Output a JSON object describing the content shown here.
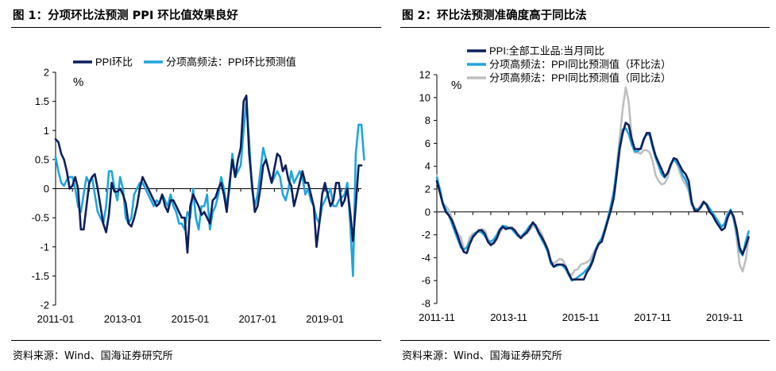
{
  "chart_data": [
    {
      "type": "line",
      "title": "图 1：分项环比法预测 PPI 环比值效果良好",
      "ylabel": "%",
      "ylim": [
        -2,
        2
      ],
      "yticks": [
        -2,
        -1.5,
        -1,
        -0.5,
        0,
        0.5,
        1,
        1.5,
        2
      ],
      "xlim": [
        "2011-01",
        "2020-02"
      ],
      "xticks": [
        "2011-01",
        "2013-01",
        "2015-01",
        "2017-01",
        "2019-01"
      ],
      "legend_position": "top",
      "grid": false,
      "source": "资料来源：Wind、国海证券研究所",
      "series": [
        {
          "name": "PPI环比",
          "color": "#0c1f5c",
          "start": "2011-01",
          "values": [
            0.85,
            0.8,
            0.6,
            0.5,
            0.3,
            0.0,
            0.05,
            0.2,
            0.0,
            -0.7,
            -0.7,
            -0.3,
            0.1,
            0.2,
            0.25,
            0.0,
            -0.3,
            -0.6,
            -0.75,
            -0.45,
            0.1,
            -0.05,
            -0.05,
            0.0,
            -0.1,
            -0.25,
            -0.6,
            -0.65,
            -0.5,
            -0.3,
            0.0,
            0.2,
            0.1,
            0.0,
            -0.1,
            -0.2,
            -0.3,
            -0.25,
            -0.1,
            -0.3,
            -0.4,
            -0.2,
            -0.2,
            -0.3,
            -0.4,
            -0.5,
            -0.5,
            -1.1,
            -0.3,
            -0.1,
            -0.2,
            -0.3,
            -0.45,
            -0.4,
            -0.5,
            -0.6,
            -0.2,
            -0.15,
            0.0,
            0.1,
            -0.1,
            -0.4,
            0.1,
            0.5,
            0.2,
            0.5,
            0.7,
            1.5,
            1.6,
            0.6,
            0.1,
            -0.4,
            -0.3,
            0.0,
            0.4,
            0.5,
            0.3,
            0.1,
            0.35,
            0.6,
            0.55,
            0.3,
            0.4,
            0.15,
            0.05,
            -0.3,
            -0.1,
            0.1,
            0.3,
            0.1,
            0.1,
            -0.1,
            -0.3,
            -1.0,
            -0.6,
            -0.1,
            0.1,
            -0.1,
            -0.3,
            -0.2,
            0.1,
            0.1,
            -0.3,
            -0.2,
            0.0,
            -0.4,
            -0.9,
            -0.3,
            0.4,
            0.4
          ]
        },
        {
          "name": "分项高频法：PPI环比预测值",
          "color": "#1fa5dc",
          "start": "2011-01",
          "values": [
            0.55,
            0.3,
            0.1,
            0.05,
            0.15,
            0.2,
            0.2,
            0.0,
            -0.3,
            -0.4,
            -0.1,
            0.2,
            0.1,
            0.2,
            -0.1,
            -0.4,
            -0.5,
            -0.6,
            -0.3,
            0.3,
            0.3,
            0.0,
            -0.2,
            0.2,
            0.0,
            -0.5,
            -0.6,
            -0.5,
            -0.1,
            0.0,
            0.1,
            0.1,
            0.0,
            -0.1,
            -0.2,
            -0.3,
            -0.2,
            -0.25,
            -0.1,
            -0.2,
            -0.3,
            -0.1,
            -0.3,
            -0.4,
            -0.6,
            -0.6,
            -0.7,
            -0.4,
            -0.5,
            0.0,
            -0.5,
            -0.7,
            -0.3,
            -0.3,
            -0.1,
            -0.7,
            -0.4,
            -0.3,
            -0.1,
            0.2,
            0.0,
            -0.3,
            0.0,
            0.6,
            0.2,
            0.3,
            0.4,
            1.0,
            1.5,
            0.8,
            0.0,
            -0.3,
            -0.1,
            0.3,
            0.7,
            0.5,
            0.3,
            0.1,
            0.2,
            0.3,
            0.2,
            -0.1,
            -0.2,
            0.0,
            0.3,
            0.1,
            0.2,
            0.3,
            0.2,
            -0.1,
            0.0,
            -0.2,
            -0.3,
            -0.5,
            -0.6,
            -0.3,
            -0.2,
            -0.1,
            0.0,
            -0.3,
            -0.3,
            -0.2,
            -0.15,
            -0.1,
            0.1,
            -0.6,
            -1.5,
            0.6,
            1.1,
            1.1,
            0.5
          ]
        }
      ]
    },
    {
      "type": "line",
      "title": "图 2：环比法预测准确度高于同比法",
      "ylabel": "%",
      "ylim": [
        -8,
        12
      ],
      "yticks": [
        -8,
        -6,
        -4,
        -2,
        0,
        2,
        4,
        6,
        8,
        10,
        12
      ],
      "xlim": [
        "2011-11",
        "2020-05"
      ],
      "xticks": [
        "2011-11",
        "2013-11",
        "2015-11",
        "2017-11",
        "2019-11"
      ],
      "legend_position": "top",
      "grid": false,
      "source": "资料来源：Wind、国海证券研究所",
      "series": [
        {
          "name": "PPI:全部工业品:当月同比",
          "color": "#0c1f5c",
          "start": "2011-11",
          "values": [
            2.7,
            1.7,
            0.7,
            0.0,
            -0.3,
            -0.7,
            -1.4,
            -2.1,
            -2.9,
            -3.5,
            -3.6,
            -2.8,
            -2.2,
            -1.9,
            -1.6,
            -1.6,
            -1.9,
            -2.6,
            -2.9,
            -2.7,
            -2.3,
            -1.6,
            -1.3,
            -1.5,
            -1.4,
            -1.4,
            -1.6,
            -2.0,
            -2.3,
            -2.0,
            -1.8,
            -1.4,
            -0.9,
            -1.2,
            -1.8,
            -2.2,
            -2.7,
            -3.3,
            -4.3,
            -4.8,
            -4.6,
            -4.6,
            -4.6,
            -4.8,
            -5.4,
            -5.9,
            -5.9,
            -5.9,
            -5.9,
            -5.9,
            -5.3,
            -4.9,
            -4.3,
            -3.4,
            -2.8,
            -2.6,
            -1.7,
            -0.8,
            0.1,
            1.2,
            3.3,
            5.5,
            6.9,
            7.8,
            7.6,
            6.4,
            5.5,
            5.5,
            5.5,
            6.3,
            6.9,
            6.9,
            5.8,
            4.9,
            4.3,
            3.7,
            3.1,
            3.4,
            4.1,
            4.7,
            4.6,
            4.1,
            3.6,
            3.3,
            2.7,
            0.9,
            0.1,
            0.1,
            0.4,
            0.9,
            0.6,
            0.0,
            -0.3,
            -0.8,
            -1.2,
            -1.6,
            -1.4,
            -0.5,
            0.1,
            -0.4,
            -1.5,
            -3.1,
            -3.7,
            -3.0,
            -2.2
          ]
        },
        {
          "name": "分项高频法：PPI同比预测值（环比法）",
          "color": "#1fa5dc",
          "start": "2011-11",
          "values": [
            3.0,
            2.0,
            0.8,
            0.2,
            -0.3,
            -1.0,
            -1.7,
            -2.4,
            -3.1,
            -3.3,
            -3.1,
            -2.6,
            -2.1,
            -1.8,
            -1.7,
            -1.8,
            -2.1,
            -2.5,
            -2.6,
            -2.4,
            -2.0,
            -1.5,
            -1.2,
            -1.3,
            -1.4,
            -1.5,
            -1.8,
            -2.1,
            -2.2,
            -1.9,
            -1.6,
            -1.2,
            -1.0,
            -1.3,
            -1.9,
            -2.4,
            -2.9,
            -3.5,
            -4.5,
            -4.8,
            -4.7,
            -4.6,
            -4.7,
            -5.0,
            -5.5,
            -6.0,
            -5.9,
            -5.7,
            -5.5,
            -5.3,
            -5.0,
            -4.7,
            -4.1,
            -3.3,
            -2.7,
            -2.3,
            -1.5,
            -0.6,
            0.5,
            1.8,
            3.8,
            5.8,
            7.2,
            7.3,
            6.8,
            5.9,
            5.3,
            5.3,
            5.6,
            6.4,
            6.8,
            6.7,
            5.6,
            4.7,
            4.0,
            3.3,
            3.0,
            3.4,
            4.2,
            4.6,
            4.3,
            3.9,
            3.2,
            2.8,
            2.1,
            0.7,
            0.3,
            0.2,
            0.4,
            0.8,
            0.7,
            0.3,
            -0.1,
            -0.5,
            -0.9,
            -1.3,
            -1.0,
            -0.2,
            0.2,
            -0.5,
            -1.8,
            -3.4,
            -3.8,
            -2.6,
            -1.7
          ]
        },
        {
          "name": "分项高频法：PPI同比预测值（同比法）",
          "color": "#bfbfbf",
          "start": "2011-11",
          "values": [
            3.2,
            1.8,
            0.8,
            0.5,
            0.2,
            -0.6,
            -1.2,
            -1.9,
            -2.2,
            -3.2,
            -3.2,
            -2.2,
            -1.9,
            -1.8,
            -1.7,
            -1.5,
            -1.6,
            -2.3,
            -2.7,
            -2.8,
            -2.4,
            -1.8,
            -1.4,
            -1.2,
            -1.4,
            -1.3,
            -1.6,
            -1.9,
            -2.1,
            -2.1,
            -1.9,
            -1.6,
            -1.2,
            -1.4,
            -1.5,
            -1.9,
            -2.7,
            -3.3,
            -4.3,
            -4.5,
            -4.3,
            -4.1,
            -4.2,
            -4.7,
            -5.4,
            -5.5,
            -5.1,
            -5.0,
            -4.6,
            -4.5,
            -4.4,
            -4.2,
            -3.7,
            -3.2,
            -2.7,
            -2.3,
            -1.5,
            -0.7,
            0.3,
            1.6,
            4.0,
            6.5,
            9.0,
            10.9,
            9.6,
            6.5,
            5.2,
            5.2,
            5.1,
            5.4,
            5.4,
            5.2,
            4.4,
            3.2,
            2.7,
            2.4,
            2.5,
            3.0,
            4.0,
            4.6,
            4.3,
            3.5,
            2.8,
            2.4,
            1.8,
            0.6,
            0.3,
            0.2,
            0.6,
            0.9,
            0.7,
            0.2,
            -0.3,
            -0.6,
            -1.1,
            -1.3,
            -1.0,
            -0.1,
            0.1,
            -0.7,
            -2.3,
            -4.6,
            -5.2,
            -4.2,
            -2.3
          ]
        }
      ]
    }
  ]
}
